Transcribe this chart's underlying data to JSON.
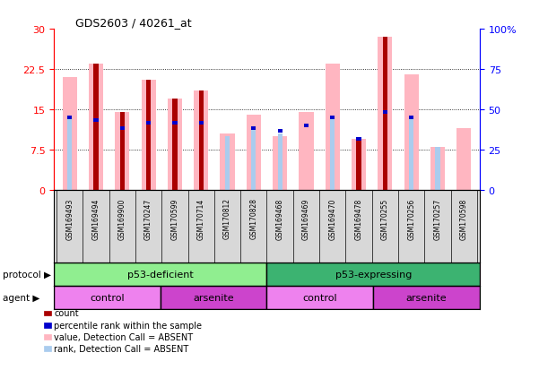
{
  "title": "GDS2603 / 40261_at",
  "samples": [
    "GSM169493",
    "GSM169494",
    "GSM169900",
    "GSM170247",
    "GSM170599",
    "GSM170714",
    "GSM170812",
    "GSM170828",
    "GSM169468",
    "GSM169469",
    "GSM169470",
    "GSM169478",
    "GSM170255",
    "GSM170256",
    "GSM170257",
    "GSM170598"
  ],
  "count_values": [
    0,
    23.5,
    14.5,
    20.5,
    17.0,
    18.5,
    0,
    0,
    0,
    0,
    0,
    9.5,
    28.5,
    0,
    0,
    0
  ],
  "pink_bar_values": [
    21.0,
    23.5,
    14.5,
    20.5,
    17.0,
    18.5,
    10.5,
    14.0,
    10.0,
    14.5,
    23.5,
    9.5,
    28.5,
    21.5,
    8.0,
    11.5
  ],
  "blue_marker_vals": [
    13.5,
    13.0,
    11.5,
    12.5,
    12.5,
    12.5,
    0,
    11.5,
    11.0,
    12.0,
    13.5,
    9.5,
    14.5,
    13.5,
    0,
    0
  ],
  "lightblue_vals": [
    13.5,
    0,
    11.5,
    12.5,
    12.5,
    12.5,
    10.0,
    11.5,
    10.5,
    0,
    13.5,
    0,
    14.5,
    13.5,
    8.0,
    0
  ],
  "ylim_left": [
    0,
    30
  ],
  "yticks_left": [
    0,
    7.5,
    15,
    22.5,
    30
  ],
  "ylim_right": [
    0,
    100
  ],
  "yticks_right": [
    0,
    25,
    50,
    75,
    100
  ],
  "protocol_groups": [
    {
      "label": "p53-deficient",
      "start": 0,
      "end": 8,
      "color": "#90EE90"
    },
    {
      "label": "p53-expressing",
      "start": 8,
      "end": 16,
      "color": "#3CB371"
    }
  ],
  "agent_groups": [
    {
      "label": "control",
      "start": 0,
      "end": 4,
      "color": "#EE82EE"
    },
    {
      "label": "arsenite",
      "start": 4,
      "end": 8,
      "color": "#CC44CC"
    },
    {
      "label": "control",
      "start": 8,
      "end": 12,
      "color": "#EE82EE"
    },
    {
      "label": "arsenite",
      "start": 12,
      "end": 16,
      "color": "#CC44CC"
    }
  ],
  "dark_red": "#AA0000",
  "pink": "#FFB6C1",
  "blue": "#0000CC",
  "light_blue": "#AACCEE",
  "xtick_bg": "#D8D8D8",
  "legend_items": [
    {
      "color": "#AA0000",
      "label": "count"
    },
    {
      "color": "#0000CC",
      "label": "percentile rank within the sample"
    },
    {
      "color": "#FFB6C1",
      "label": "value, Detection Call = ABSENT"
    },
    {
      "color": "#AACCEE",
      "label": "rank, Detection Call = ABSENT"
    }
  ]
}
